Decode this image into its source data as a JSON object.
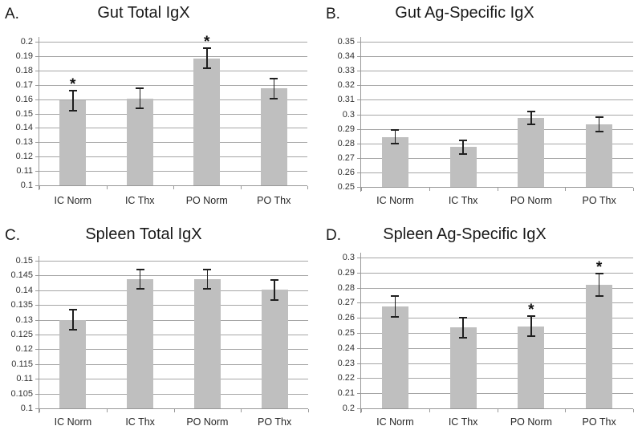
{
  "colors": {
    "bar_fill": "#bfbfbf",
    "gridline": "#a6a6a6",
    "axis": "#999999",
    "error_bar": "#1f1f1f",
    "title_text": "#1a1a1a",
    "tick_text": "#333333"
  },
  "chart_data": [
    {
      "type": "bar",
      "panel_label": "A.",
      "title": "Gut Total IgX",
      "categories": [
        "IC Norm",
        "IC Thx",
        "PO Norm",
        "PO Thx"
      ],
      "values": [
        0.159,
        0.1605,
        0.1885,
        0.1675
      ],
      "errors": [
        0.0068,
        0.007,
        0.0072,
        0.007
      ],
      "sig_markers": [
        "*",
        "",
        "*",
        ""
      ],
      "ylim": [
        0.1,
        0.2
      ],
      "ytick_step": 0.01,
      "y_ticks": [
        "0.2",
        "0.19",
        "0.18",
        "0.17",
        "0.16",
        "0.15",
        "0.14",
        "0.13",
        "0.12",
        "0.11",
        "0.1"
      ],
      "grid": true,
      "legend": null
    },
    {
      "type": "bar",
      "panel_label": "B.",
      "title": "Gut Ag-Specific IgX",
      "categories": [
        "IC Norm",
        "IC Thx",
        "PO Norm",
        "PO Thx"
      ],
      "values": [
        0.2845,
        0.2775,
        0.2975,
        0.293
      ],
      "errors": [
        0.0045,
        0.0047,
        0.0042,
        0.0048
      ],
      "sig_markers": [
        "",
        "",
        "",
        ""
      ],
      "ylim": [
        0.25,
        0.35
      ],
      "ytick_step": 0.01,
      "y_ticks": [
        "0.35",
        "0.34",
        "0.33",
        "0.32",
        "0.31",
        "0.3",
        "0.29",
        "0.28",
        "0.27",
        "0.26",
        "0.25"
      ],
      "grid": true,
      "legend": null
    },
    {
      "type": "bar",
      "panel_label": "C.",
      "title": "Spleen Total IgX",
      "categories": [
        "IC Norm",
        "IC Thx",
        "PO Norm",
        "PO Thx"
      ],
      "values": [
        0.13,
        0.1437,
        0.1438,
        0.1401
      ],
      "errors": [
        0.0033,
        0.0032,
        0.0033,
        0.0033
      ],
      "sig_markers": [
        "",
        "",
        "",
        ""
      ],
      "ylim": [
        0.1,
        0.15
      ],
      "ytick_step": 0.005,
      "y_ticks": [
        "0.15",
        "0.145",
        "0.14",
        "0.135",
        "0.13",
        "0.125",
        "0.12",
        "0.115",
        "0.11",
        "0.105",
        "0.1"
      ],
      "grid": true,
      "legend": null
    },
    {
      "type": "bar",
      "panel_label": "D.",
      "title": "Spleen Ag-Specific IgX",
      "categories": [
        "IC Norm",
        "IC Thx",
        "PO Norm",
        "PO Thx"
      ],
      "values": [
        0.2675,
        0.2535,
        0.2545,
        0.282
      ],
      "errors": [
        0.007,
        0.0068,
        0.0068,
        0.0073
      ],
      "sig_markers": [
        "",
        "",
        "*",
        "*"
      ],
      "ylim": [
        0.2,
        0.3
      ],
      "ytick_step": 0.01,
      "y_ticks": [
        "0.3",
        "0.29",
        "0.28",
        "0.27",
        "0.26",
        "0.25",
        "0.24",
        "0.23",
        "0.22",
        "0.21",
        "0.2"
      ],
      "grid": true,
      "legend": null
    }
  ]
}
